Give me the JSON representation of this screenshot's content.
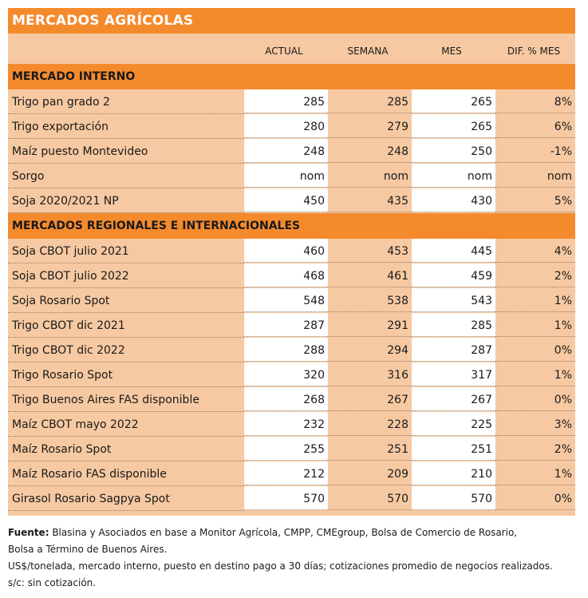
{
  "title": "MERCADOS AGRÍCOLAS",
  "columns": [
    "ACTUAL",
    "SEMANA",
    "MES",
    "DIF. % MES"
  ],
  "sections": [
    {
      "heading": "MERCADO INTERNO",
      "rows": [
        {
          "label": "Trigo pan grado 2",
          "actual": "285",
          "semana": "285",
          "mes": "265",
          "dif": "8%"
        },
        {
          "label": "Trigo exportación",
          "actual": "280",
          "semana": "279",
          "mes": "265",
          "dif": "6%"
        },
        {
          "label": "Maíz puesto Montevideo",
          "actual": "248",
          "semana": "248",
          "mes": "250",
          "dif": "-1%"
        },
        {
          "label": "Sorgo",
          "actual": "nom",
          "semana": "nom",
          "mes": "nom",
          "dif": "nom"
        },
        {
          "label": "Soja 2020/2021 NP",
          "actual": "450",
          "semana": "435",
          "mes": "430",
          "dif": "5%"
        }
      ]
    },
    {
      "heading": "MERCADOS REGIONALES E INTERNACIONALES",
      "rows": [
        {
          "label": "Soja CBOT julio 2021",
          "actual": "460",
          "semana": "453",
          "mes": "445",
          "dif": "4%"
        },
        {
          "label": "Soja CBOT julio 2022",
          "actual": "468",
          "semana": "461",
          "mes": "459",
          "dif": "2%"
        },
        {
          "label": "Soja Rosario Spot",
          "actual": "548",
          "semana": "538",
          "mes": "543",
          "dif": "1%"
        },
        {
          "label": "Trigo CBOT dic 2021",
          "actual": "287",
          "semana": "291",
          "mes": "285",
          "dif": "1%"
        },
        {
          "label": "Trigo CBOT dic 2022",
          "actual": "288",
          "semana": "294",
          "mes": "287",
          "dif": "0%"
        },
        {
          "label": "Trigo Rosario Spot",
          "actual": "320",
          "semana": "316",
          "mes": "317",
          "dif": "1%"
        },
        {
          "label": "Trigo Buenos Aires FAS disponible",
          "actual": "268",
          "semana": "267",
          "mes": "267",
          "dif": "0%"
        },
        {
          "label": "Maíz CBOT mayo 2022",
          "actual": "232",
          "semana": "228",
          "mes": "225",
          "dif": "3%"
        },
        {
          "label": "Maíz Rosario Spot",
          "actual": "255",
          "semana": "251",
          "mes": "251",
          "dif": "2%"
        },
        {
          "label": "Maíz Rosario FAS disponible",
          "actual": "212",
          "semana": "209",
          "mes": "210",
          "dif": "1%"
        },
        {
          "label": "Girasol Rosario Sagpya Spot",
          "actual": "570",
          "semana": "570",
          "mes": "570",
          "dif": "0%"
        }
      ]
    }
  ],
  "footer": {
    "source_label": "Fuente:",
    "source_text": " Blasina y Asociados en base a Monitor Agrícola, CMPP, CMEgroup, Bolsa de Comercio de Rosario,",
    "source_text2": "Bolsa a Término de Buenos Aires.",
    "note1": "US$/tonelada, mercado interno, puesto en destino pago a 30 días; cotizaciones promedio de negocios realizados.",
    "note2": "s/c: sin cotización."
  }
}
